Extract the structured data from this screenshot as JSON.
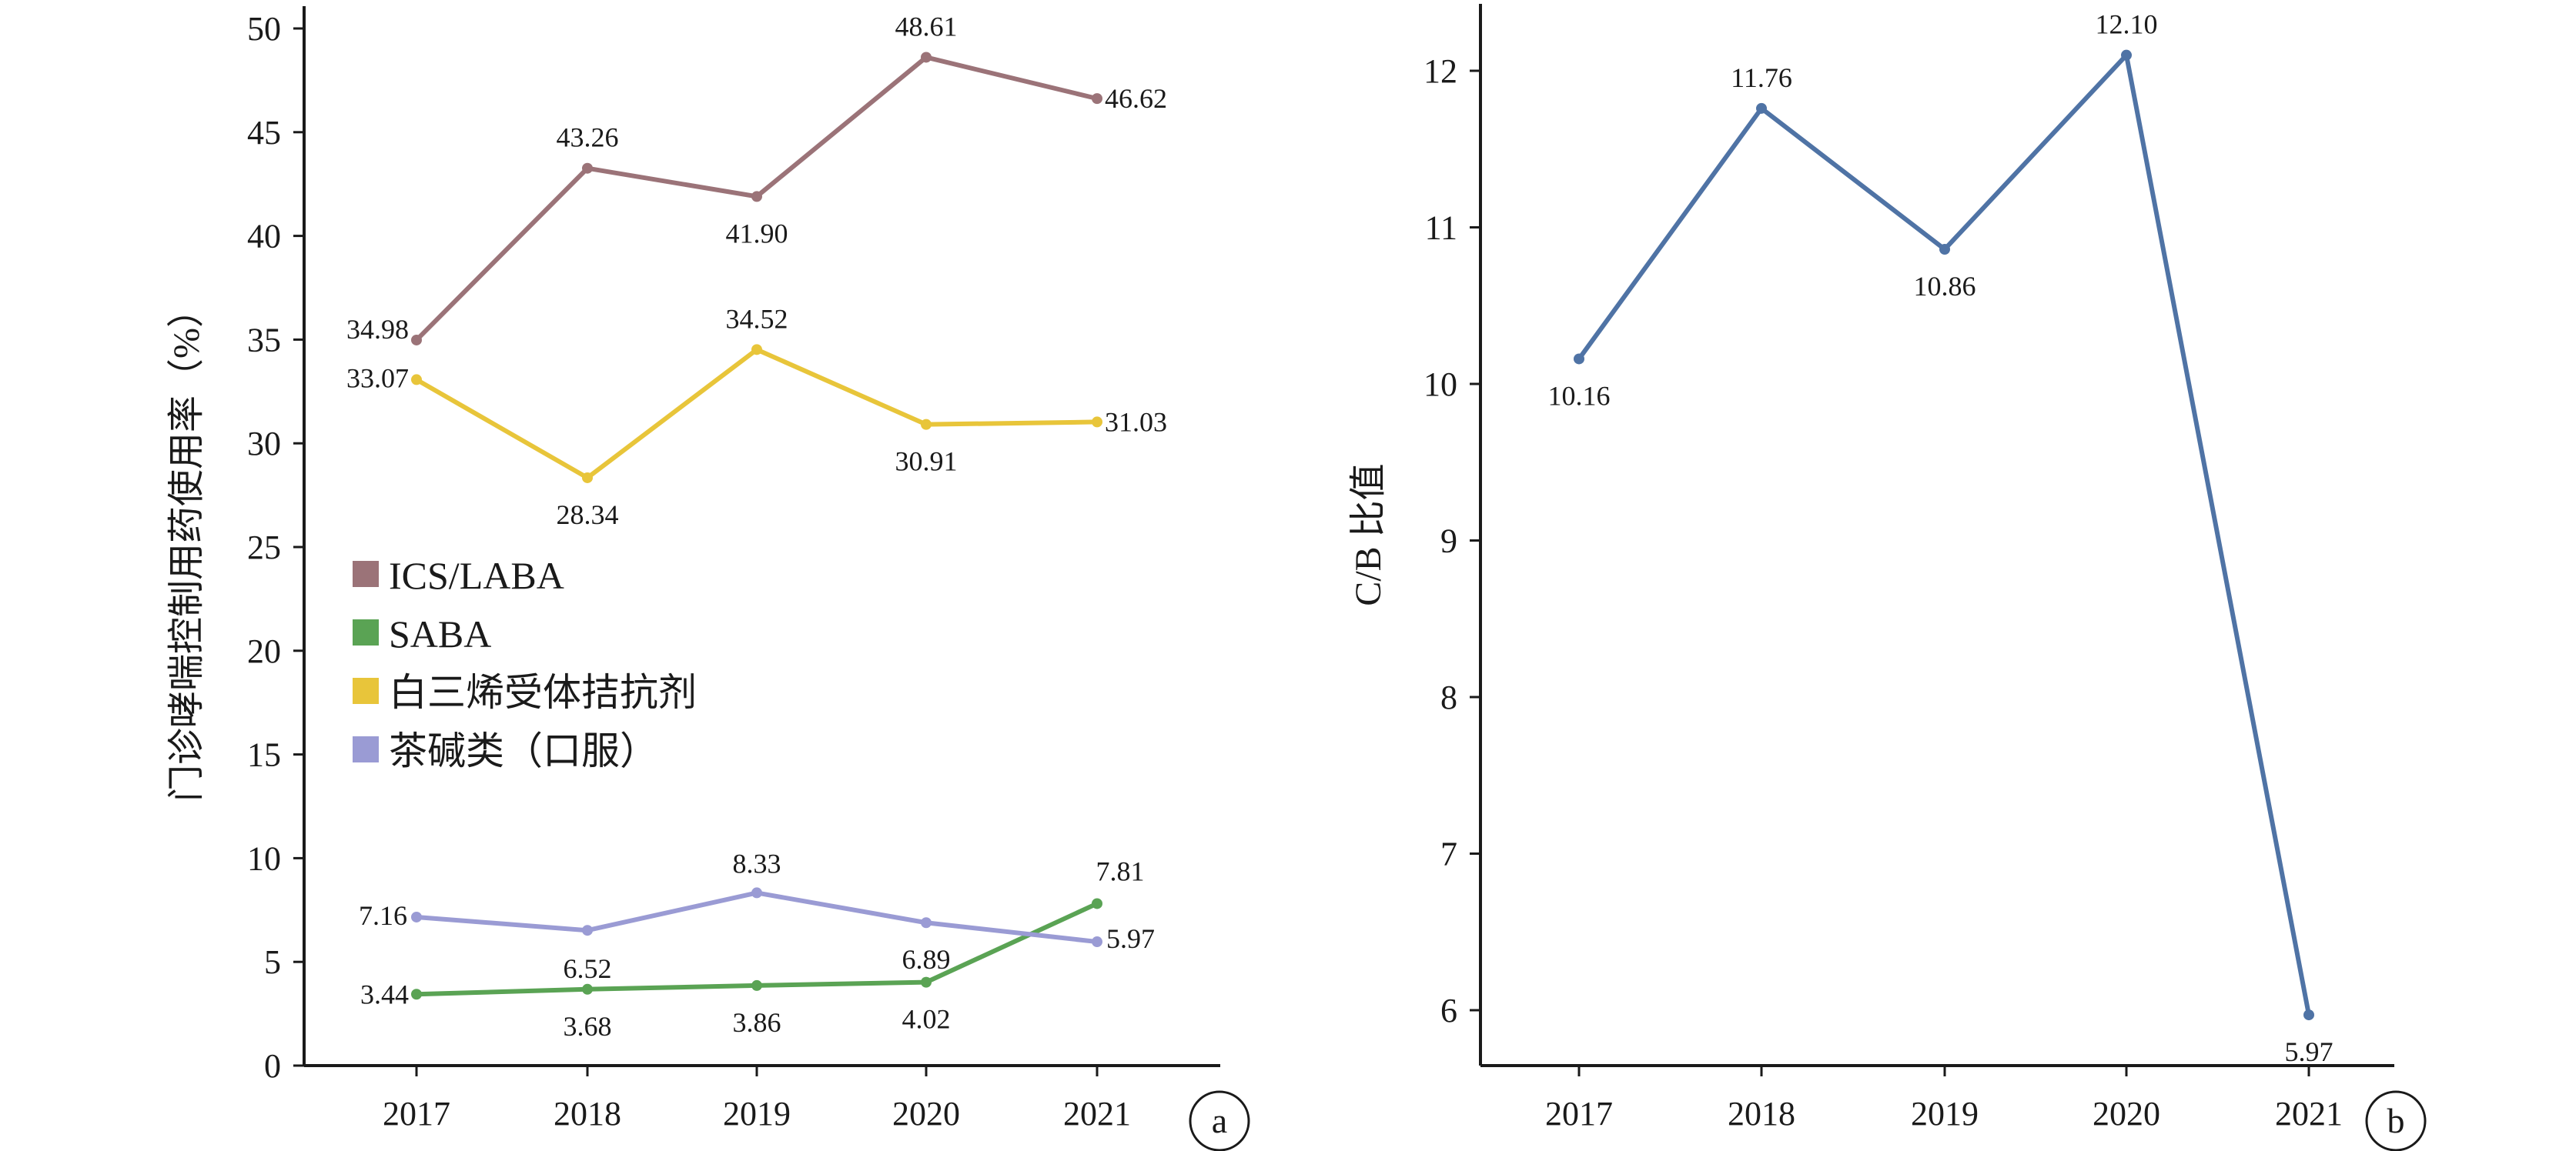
{
  "chart_data": [
    {
      "type": "line",
      "panel_tag": "a",
      "ylabel": "门诊哮喘控制用药使用率（%）",
      "categories": [
        "2017",
        "2018",
        "2019",
        "2020",
        "2021"
      ],
      "ylim": [
        0,
        50
      ],
      "yticks": [
        "0",
        "5",
        "10",
        "15",
        "20",
        "25",
        "30",
        "35",
        "40",
        "45",
        "50"
      ],
      "legend_position": "center-left",
      "series": [
        {
          "name": "ICS/LABA",
          "color": "#9b7378",
          "values": [
            34.98,
            43.26,
            41.9,
            48.61,
            46.62
          ],
          "labels": [
            "34.98",
            "43.26",
            "41.90",
            "48.61",
            "46.62"
          ]
        },
        {
          "name": "SABA",
          "color": "#5aa354",
          "values": [
            3.44,
            3.68,
            3.86,
            4.02,
            7.81
          ],
          "labels": [
            "3.44",
            "3.68",
            "3.86",
            "4.02",
            "7.81"
          ]
        },
        {
          "name": "白三烯受体拮抗剂",
          "color": "#e8c53a",
          "values": [
            33.07,
            28.34,
            34.52,
            30.91,
            31.03
          ],
          "labels": [
            "33.07",
            "28.34",
            "34.52",
            "30.91",
            "31.03"
          ]
        },
        {
          "name": "茶碱类（口服）",
          "color": "#9a9bd4",
          "values": [
            7.16,
            6.52,
            8.33,
            6.89,
            5.97
          ],
          "labels": [
            "7.16",
            "6.52",
            "8.33",
            "6.89",
            "5.97"
          ]
        }
      ]
    },
    {
      "type": "line",
      "panel_tag": "b",
      "ylabel": "C/B 比值",
      "categories": [
        "2017",
        "2018",
        "2019",
        "2020",
        "2021"
      ],
      "ylim": [
        5.65,
        12.4
      ],
      "yticks": [
        "6",
        "7",
        "8",
        "9",
        "10",
        "11",
        "12"
      ],
      "series": [
        {
          "color": "#4f73a5",
          "values": [
            10.16,
            11.76,
            10.86,
            12.1,
            5.97
          ],
          "labels": [
            "10.16",
            "11.76",
            "10.86",
            "12.10",
            "5.97"
          ]
        }
      ]
    }
  ]
}
